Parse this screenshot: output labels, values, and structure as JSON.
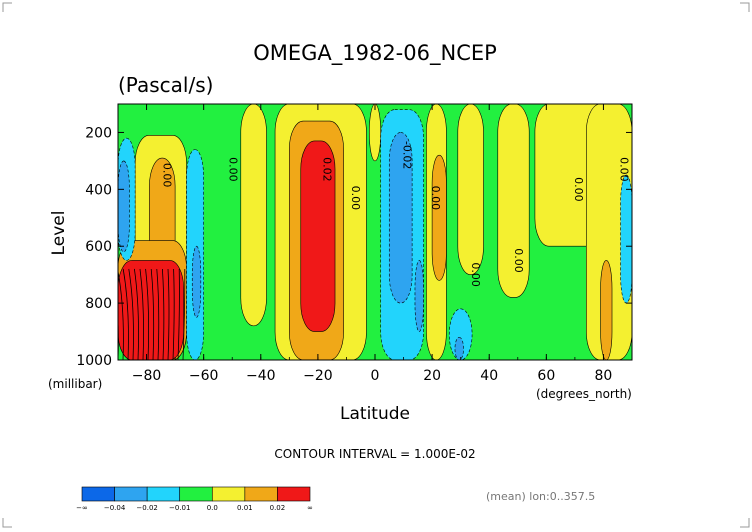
{
  "chart_data": {
    "type": "heatmap",
    "subtype": "filled-contour",
    "title": "OMEGA_1982-06_NCEP",
    "subtitle": "(Pascal/s)",
    "xlabel": "Latitude",
    "ylabel": "Level",
    "x_units": "(degrees_north)",
    "y_units": "(millibar)",
    "xlim": [
      -90,
      90
    ],
    "ylim": [
      1000,
      100
    ],
    "y_reversed": true,
    "x_ticks": [
      -80,
      -60,
      -40,
      -20,
      0,
      20,
      40,
      60,
      80
    ],
    "y_ticks": [
      200,
      400,
      600,
      800,
      1000
    ],
    "x_tick_labels": [
      "−80",
      "−60",
      "−40",
      "−20",
      "0",
      "20",
      "40",
      "60",
      "80"
    ],
    "y_tick_labels": [
      "200",
      "400",
      "600",
      "800",
      "1000"
    ],
    "grid": false,
    "contour_labels": [
      {
        "text": "0.00",
        "x": -74,
        "y": 350
      },
      {
        "text": "0.00",
        "x": -51,
        "y": 330
      },
      {
        "text": "0.02",
        "x": -18,
        "y": 330
      },
      {
        "text": "0.00",
        "x": -8,
        "y": 430
      },
      {
        "text": "-0.02",
        "x": 10,
        "y": 280
      },
      {
        "text": "0.00",
        "x": 20,
        "y": 430
      },
      {
        "text": "0.00",
        "x": 34,
        "y": 700
      },
      {
        "text": "0.00",
        "x": 49,
        "y": 650
      },
      {
        "text": "0.00",
        "x": 70,
        "y": 400
      },
      {
        "text": "0.00",
        "x": 86,
        "y": 330
      }
    ],
    "legend": {
      "position": "bottom-left",
      "levels": [
        "−∞",
        "−0.04",
        "−0.02",
        "−0.01",
        "0.0",
        "0.01",
        "0.02",
        "∞"
      ],
      "colors": [
        "#0c68e8",
        "#2ea4f0",
        "#22d4fc",
        "#22f040",
        "#f4f030",
        "#f0a818",
        "#f01818"
      ]
    },
    "contour_interval_text": "CONTOUR INTERVAL = 1.000E-02",
    "note": "(mean) lon:0..357.5",
    "palette": {
      "green": "#22f040",
      "yellow": "#f4f030",
      "orange": "#f0a818",
      "red": "#f01818",
      "cyan": "#22d4fc",
      "lightblue": "#2ea4f0",
      "blue": "#0c68e8"
    },
    "regions": [
      {
        "level": "0.0",
        "lat": [
          -90,
          90
        ],
        "p": [
          100,
          1000
        ]
      },
      {
        "level": "0.01",
        "lat": [
          -84,
          -66
        ],
        "p": [
          210,
          1000
        ]
      },
      {
        "level": "0.01",
        "lat": [
          -47,
          -38
        ],
        "p": [
          100,
          880
        ]
      },
      {
        "level": "0.01",
        "lat": [
          -35,
          -3
        ],
        "p": [
          100,
          1000
        ]
      },
      {
        "level": "0.01",
        "lat": [
          -2,
          2
        ],
        "p": [
          100,
          300
        ]
      },
      {
        "level": "0.01",
        "lat": [
          18,
          25
        ],
        "p": [
          100,
          1000
        ]
      },
      {
        "level": "0.01",
        "lat": [
          29,
          38
        ],
        "p": [
          100,
          700
        ]
      },
      {
        "level": "0.01",
        "lat": [
          43,
          54
        ],
        "p": [
          100,
          780
        ]
      },
      {
        "level": "0.01",
        "lat": [
          56,
          82
        ],
        "p": [
          100,
          600
        ]
      },
      {
        "level": "0.01",
        "lat": [
          74,
          90
        ],
        "p": [
          100,
          1000
        ]
      },
      {
        "level": "0.02",
        "lat": [
          -79,
          -70
        ],
        "p": [
          290,
          720
        ]
      },
      {
        "level": "0.02",
        "lat": [
          -90,
          -66
        ],
        "p": [
          580,
          1000
        ]
      },
      {
        "level": "0.02",
        "lat": [
          -30,
          -11
        ],
        "p": [
          160,
          1000
        ]
      },
      {
        "level": "0.02",
        "lat": [
          20,
          25
        ],
        "p": [
          280,
          720
        ]
      },
      {
        "level": "0.02",
        "lat": [
          79,
          83
        ],
        "p": [
          650,
          1000
        ]
      },
      {
        "level": "∞",
        "lat": [
          -90,
          -67
        ],
        "p": [
          650,
          1000
        ]
      },
      {
        "level": "∞",
        "lat": [
          -26,
          -14
        ],
        "p": [
          230,
          900
        ]
      },
      {
        "level": "−0.01",
        "lat": [
          -90,
          -84
        ],
        "p": [
          220,
          650
        ]
      },
      {
        "level": "−0.01",
        "lat": [
          -66,
          -60
        ],
        "p": [
          260,
          1000
        ]
      },
      {
        "level": "−0.01",
        "lat": [
          2,
          17
        ],
        "p": [
          120,
          1000
        ]
      },
      {
        "level": "−0.01",
        "lat": [
          26,
          34
        ],
        "p": [
          820,
          1000
        ]
      },
      {
        "level": "−0.01",
        "lat": [
          86,
          90
        ],
        "p": [
          350,
          800
        ]
      },
      {
        "level": "−0.02",
        "lat": [
          -90,
          -86
        ],
        "p": [
          300,
          620
        ]
      },
      {
        "level": "−0.02",
        "lat": [
          -64,
          -61
        ],
        "p": [
          600,
          850
        ]
      },
      {
        "level": "−0.02",
        "lat": [
          5,
          13
        ],
        "p": [
          200,
          800
        ]
      },
      {
        "level": "−0.02",
        "lat": [
          14,
          17
        ],
        "p": [
          650,
          900
        ]
      },
      {
        "level": "−0.02",
        "lat": [
          28,
          31
        ],
        "p": [
          920,
          1000
        ]
      }
    ]
  }
}
